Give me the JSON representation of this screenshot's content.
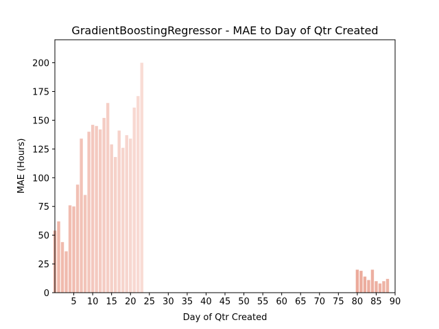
{
  "chart_data": {
    "type": "bar",
    "title": "GradientBoostingRegressor - MAE to Day of Qtr Created",
    "xlabel": "Day of Qtr Created",
    "ylabel": "MAE (Hours)",
    "xlim": [
      0,
      90
    ],
    "ylim": [
      0,
      220
    ],
    "xticks": [
      5,
      10,
      15,
      20,
      25,
      30,
      35,
      40,
      45,
      50,
      55,
      60,
      65,
      70,
      75,
      80,
      85,
      90
    ],
    "yticks": [
      0,
      25,
      50,
      75,
      100,
      125,
      150,
      175,
      200
    ],
    "grid": false,
    "x": [
      0,
      1,
      2,
      3,
      4,
      5,
      6,
      7,
      8,
      9,
      10,
      11,
      12,
      13,
      14,
      15,
      16,
      17,
      18,
      19,
      20,
      21,
      22,
      23,
      80,
      81,
      82,
      83,
      84,
      85,
      86,
      87,
      88
    ],
    "values": [
      54,
      62,
      44,
      36,
      76,
      75,
      94,
      134,
      85,
      140,
      146,
      145,
      142,
      152,
      165,
      129,
      118,
      141,
      126,
      137,
      134,
      161,
      171,
      200,
      20,
      19,
      14,
      11,
      20,
      10,
      8,
      10,
      12
    ],
    "colors": [
      "#efb6a8",
      "#efb6a8",
      "#f0baad",
      "#f0baad",
      "#f1bdb1",
      "#f1bdb1",
      "#f1c0b4",
      "#f2c2b7",
      "#f2c4b9",
      "#f3c6bc",
      "#f3c7be",
      "#f4c9c0",
      "#f4cbc2",
      "#f4ccc3",
      "#f5cec5",
      "#f5cfc7",
      "#f6d1c9",
      "#f6d2ca",
      "#f6d4cc",
      "#f7d5ce",
      "#f7d7d0",
      "#f8d8d1",
      "#f8dad3",
      "#f9dcd5",
      "#ecaa9b",
      "#ecac9d",
      "#ecad9e",
      "#edaea0",
      "#edafa1",
      "#edb0a2",
      "#eeb1a4",
      "#eeb3a5",
      "#eeb4a6"
    ]
  }
}
